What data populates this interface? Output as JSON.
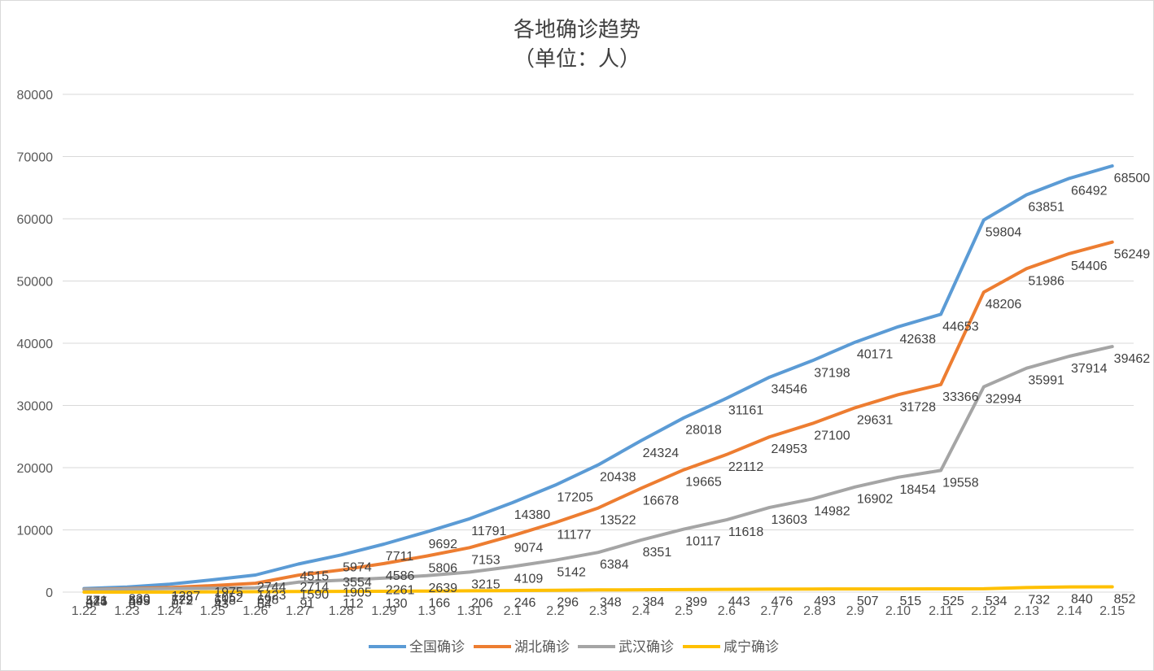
{
  "chart_data": {
    "type": "line",
    "title": "各地确诊趋势",
    "subtitle": "（单位：人）",
    "xlabel": "",
    "ylabel": "",
    "categories": [
      "1.22",
      "1.23",
      "1.24",
      "1.25",
      "1.26",
      "1.27",
      "1.28",
      "1.29",
      "1.3",
      "1.31",
      "2.1",
      "2.2",
      "2.3",
      "2.4",
      "2.5",
      "2.6",
      "2.7",
      "2.8",
      "2.9",
      "2.10",
      "2.11",
      "2.12",
      "2.13",
      "2.14",
      "2.15"
    ],
    "ylim": [
      0,
      80000
    ],
    "yticks": [
      "0",
      "10000",
      "20000",
      "30000",
      "40000",
      "50000",
      "60000",
      "70000",
      "80000"
    ],
    "grid": true,
    "legend_position": "bottom",
    "series": [
      {
        "name": "全国确诊",
        "color": "#5b9bd5",
        "values": [
          571,
          830,
          1287,
          1975,
          2744,
          4515,
          5974,
          7711,
          9692,
          11791,
          14380,
          17205,
          20438,
          24324,
          28018,
          31161,
          34546,
          37198,
          40171,
          42638,
          44653,
          59804,
          63851,
          66492,
          68500
        ]
      },
      {
        "name": "湖北确诊",
        "color": "#ed7d31",
        "values": [
          444,
          549,
          729,
          1052,
          1423,
          2714,
          3554,
          4586,
          5806,
          7153,
          9074,
          11177,
          13522,
          16678,
          19665,
          22112,
          24953,
          27100,
          29631,
          31728,
          33366,
          48206,
          51986,
          54406,
          56249
        ]
      },
      {
        "name": "武汉确诊",
        "color": "#a5a5a5",
        "values": [
          425,
          495,
          572,
          618,
          698,
          1590,
          1905,
          2261,
          2639,
          3215,
          4109,
          5142,
          6384,
          8351,
          10117,
          11618,
          13603,
          14982,
          16902,
          18454,
          19558,
          32994,
          35991,
          37914,
          39462
        ]
      },
      {
        "name": "咸宁确诊",
        "color": "#ffc000",
        "values": [
          0,
          0,
          0,
          43,
          64,
          91,
          112,
          130,
          166,
          206,
          246,
          296,
          348,
          384,
          399,
          443,
          476,
          493,
          507,
          515,
          525,
          534,
          732,
          840,
          852
        ]
      }
    ]
  }
}
